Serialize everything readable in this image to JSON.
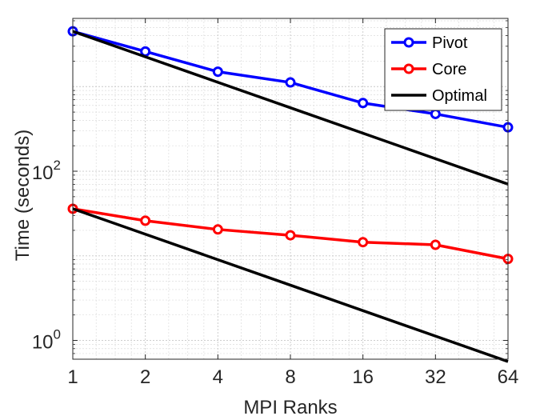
{
  "chart_data": {
    "type": "line",
    "xscale": "log2",
    "yscale": "log10",
    "x": [
      1,
      2,
      4,
      8,
      16,
      32,
      64
    ],
    "x_tick_labels": [
      "1",
      "2",
      "4",
      "8",
      "16",
      "32",
      "64"
    ],
    "y_ticks": [
      {
        "value": 1,
        "base": "10",
        "exp": "0"
      },
      {
        "value": 100,
        "base": "10",
        "exp": "2"
      }
    ],
    "xlim": [
      1,
      64
    ],
    "ylim": [
      0.6,
      6400
    ],
    "grid": true,
    "minor_grid": true,
    "xlabel": "MPI Ranks",
    "ylabel": "Time (seconds)",
    "legend_position": "top-right",
    "series": [
      {
        "name": "Pivot",
        "color": "#0000ff",
        "marker": "circle",
        "values": [
          4500,
          2600,
          1500,
          1120,
          640,
          475,
          330
        ]
      },
      {
        "name": "Core",
        "color": "#ff0000",
        "marker": "circle",
        "values": [
          36,
          26,
          20.5,
          17.5,
          14.5,
          13.5,
          9.2
        ]
      },
      {
        "name": "Optimal",
        "color": "#000000",
        "marker": "none",
        "values": [
          4500,
          2250,
          1125,
          562.5,
          281.25,
          140.63,
          70.31
        ]
      },
      {
        "name": "Optimal",
        "color": "#000000",
        "marker": "none",
        "show_in_legend": false,
        "values": [
          36,
          18,
          9,
          4.5,
          2.25,
          1.125,
          0.5625
        ]
      }
    ]
  }
}
